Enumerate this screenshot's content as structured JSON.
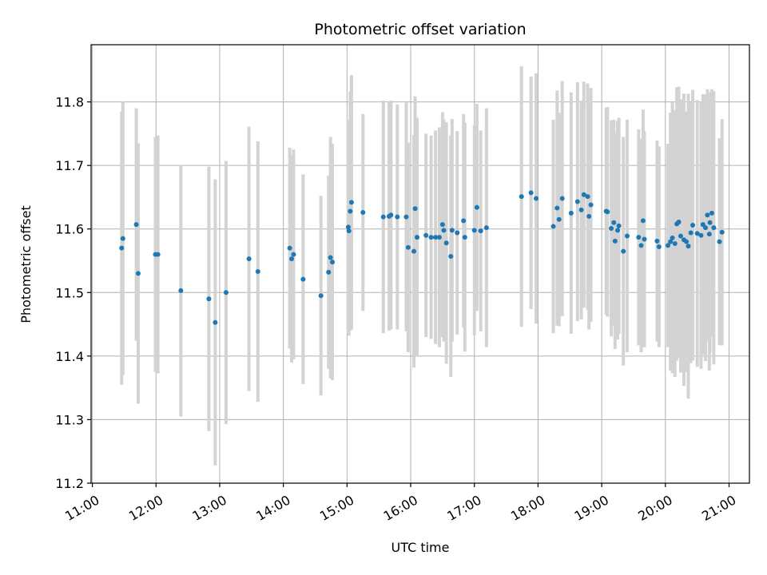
{
  "chart_data": {
    "type": "scatter",
    "title": "Photometric offset variation",
    "xlabel": "UTC time",
    "ylabel": "Photometric offset",
    "x_tick_labels": [
      "11:00",
      "12:00",
      "13:00",
      "14:00",
      "15:00",
      "16:00",
      "17:00",
      "18:00",
      "19:00",
      "20:00",
      "21:00"
    ],
    "y_tick_labels": [
      "11.2",
      "11.3",
      "11.4",
      "11.5",
      "11.6",
      "11.7",
      "11.8"
    ],
    "x_ticks": [
      11,
      12,
      13,
      14,
      15,
      16,
      17,
      18,
      19,
      20,
      21
    ],
    "y_ticks": [
      11.2,
      11.3,
      11.4,
      11.5,
      11.6,
      11.7,
      11.8
    ],
    "xlim": [
      10.98,
      21.32
    ],
    "ylim": [
      11.2,
      11.89
    ],
    "grid": true,
    "colors": {
      "marker": "#1f77b4",
      "errorbar": "#d3d3d3",
      "grid": "#b0b0b0"
    },
    "points": [
      [
        11.46,
        11.57,
        0.215
      ],
      [
        11.48,
        11.585,
        0.215
      ],
      [
        11.69,
        11.607,
        0.183
      ],
      [
        11.72,
        11.53,
        0.205
      ],
      [
        11.99,
        11.56,
        0.185
      ],
      [
        12.03,
        11.56,
        0.187
      ],
      [
        12.39,
        11.503,
        0.198
      ],
      [
        12.83,
        11.49,
        0.208
      ],
      [
        12.93,
        11.453,
        0.225
      ],
      [
        13.1,
        11.5,
        0.207
      ],
      [
        13.46,
        11.553,
        0.208
      ],
      [
        13.6,
        11.533,
        0.205
      ],
      [
        14.1,
        11.57,
        0.158
      ],
      [
        14.13,
        11.553,
        0.163
      ],
      [
        14.16,
        11.56,
        0.165
      ],
      [
        14.31,
        11.521,
        0.165
      ],
      [
        14.59,
        11.495,
        0.157
      ],
      [
        14.71,
        11.532,
        0.152
      ],
      [
        14.74,
        11.555,
        0.19
      ],
      [
        14.77,
        11.548,
        0.186
      ],
      [
        15.02,
        11.603,
        0.168
      ],
      [
        15.03,
        11.597,
        0.165
      ],
      [
        15.05,
        11.628,
        0.188
      ],
      [
        15.07,
        11.642,
        0.2
      ],
      [
        15.25,
        11.626,
        0.155
      ],
      [
        15.57,
        11.619,
        0.183
      ],
      [
        15.66,
        11.62,
        0.18
      ],
      [
        15.69,
        11.622,
        0.18
      ],
      [
        15.79,
        11.619,
        0.177
      ],
      [
        15.93,
        11.619,
        0.18
      ],
      [
        15.96,
        11.571,
        0.165
      ],
      [
        16.05,
        11.565,
        0.183
      ],
      [
        16.07,
        11.632,
        0.177
      ],
      [
        16.1,
        11.587,
        0.188
      ],
      [
        16.24,
        11.59,
        0.16
      ],
      [
        16.32,
        11.587,
        0.16
      ],
      [
        16.39,
        11.587,
        0.168
      ],
      [
        16.45,
        11.587,
        0.173
      ],
      [
        16.5,
        11.607,
        0.177
      ],
      [
        16.52,
        11.598,
        0.175
      ],
      [
        16.56,
        11.578,
        0.19
      ],
      [
        16.63,
        11.557,
        0.19
      ],
      [
        16.65,
        11.598,
        0.175
      ],
      [
        16.73,
        11.594,
        0.16
      ],
      [
        16.83,
        11.613,
        0.168
      ],
      [
        16.85,
        11.587,
        0.18
      ],
      [
        17.0,
        11.598,
        0.165
      ],
      [
        17.04,
        11.634,
        0.163
      ],
      [
        17.1,
        11.597,
        0.158
      ],
      [
        17.19,
        11.602,
        0.188
      ],
      [
        17.74,
        11.651,
        0.205
      ],
      [
        17.89,
        11.657,
        0.183
      ],
      [
        17.97,
        11.648,
        0.197
      ],
      [
        18.24,
        11.604,
        0.168
      ],
      [
        18.3,
        11.633,
        0.185
      ],
      [
        18.33,
        11.615,
        0.168
      ],
      [
        18.38,
        11.648,
        0.185
      ],
      [
        18.52,
        11.625,
        0.19
      ],
      [
        18.62,
        11.643,
        0.188
      ],
      [
        18.68,
        11.63,
        0.172
      ],
      [
        18.72,
        11.654,
        0.178
      ],
      [
        18.78,
        11.651,
        0.178
      ],
      [
        18.8,
        11.62,
        0.178
      ],
      [
        18.83,
        11.638,
        0.184
      ],
      [
        19.07,
        11.628,
        0.163
      ],
      [
        19.09,
        11.627,
        0.165
      ],
      [
        19.15,
        11.601,
        0.17
      ],
      [
        19.19,
        11.61,
        0.162
      ],
      [
        19.21,
        11.581,
        0.17
      ],
      [
        19.25,
        11.598,
        0.172
      ],
      [
        19.27,
        11.605,
        0.17
      ],
      [
        19.34,
        11.565,
        0.18
      ],
      [
        19.4,
        11.589,
        0.183
      ],
      [
        19.58,
        11.587,
        0.17
      ],
      [
        19.62,
        11.574,
        0.168
      ],
      [
        19.65,
        11.613,
        0.175
      ],
      [
        19.67,
        11.584,
        0.17
      ],
      [
        19.87,
        11.581,
        0.158
      ],
      [
        19.9,
        11.572,
        0.158
      ],
      [
        20.04,
        11.574,
        0.16
      ],
      [
        20.08,
        11.58,
        0.203
      ],
      [
        20.11,
        11.586,
        0.213
      ],
      [
        20.15,
        11.577,
        0.21
      ],
      [
        20.18,
        11.608,
        0.215
      ],
      [
        20.21,
        11.611,
        0.213
      ],
      [
        20.24,
        11.589,
        0.215
      ],
      [
        20.29,
        11.583,
        0.23
      ],
      [
        20.33,
        11.58,
        0.205
      ],
      [
        20.36,
        11.573,
        0.24
      ],
      [
        20.4,
        11.594,
        0.205
      ],
      [
        20.43,
        11.606,
        0.213
      ],
      [
        20.5,
        11.593,
        0.21
      ],
      [
        20.56,
        11.59,
        0.21
      ],
      [
        20.59,
        11.607,
        0.205
      ],
      [
        20.63,
        11.602,
        0.21
      ],
      [
        20.66,
        11.622,
        0.198
      ],
      [
        20.69,
        11.592,
        0.215
      ],
      [
        20.7,
        11.61,
        0.205
      ],
      [
        20.73,
        11.625,
        0.195
      ],
      [
        20.76,
        11.602,
        0.215
      ],
      [
        20.85,
        11.58,
        0.163
      ],
      [
        20.89,
        11.595,
        0.178
      ]
    ]
  }
}
